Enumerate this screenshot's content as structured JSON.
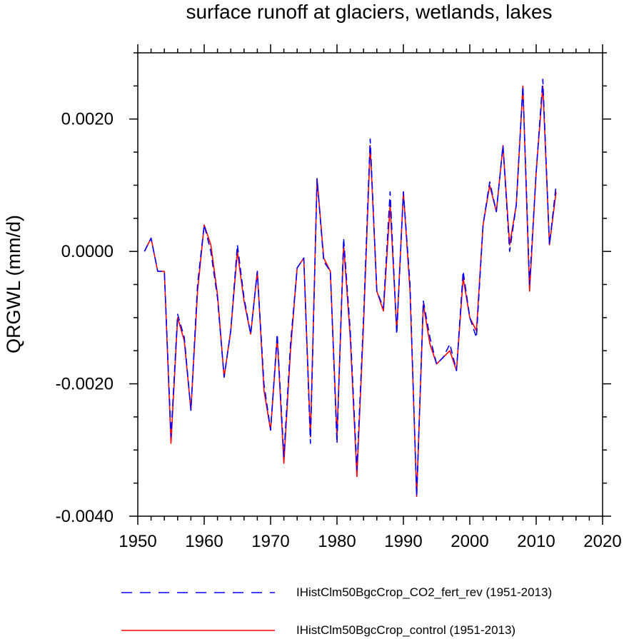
{
  "chart_data": {
    "type": "line",
    "title": "surface runoff at glaciers, wetlands, lakes",
    "xlabel": "",
    "ylabel": "QRGWL  (mm/d)",
    "xlim": [
      1950,
      2020
    ],
    "ylim": [
      -0.004,
      0.003
    ],
    "x_ticks": [
      1950,
      1960,
      1970,
      1980,
      1990,
      2000,
      2010,
      2020
    ],
    "x_tick_labels": [
      "1950",
      "1960",
      "1970",
      "1980",
      "1990",
      "2000",
      "2010",
      "2020"
    ],
    "y_ticks": [
      -0.004,
      -0.002,
      0.0,
      0.002
    ],
    "y_tick_labels": [
      "-0.0040",
      "-0.0020",
      "0.0000",
      "0.0020"
    ],
    "grid": false,
    "legend_position": "bottom",
    "x": [
      1951,
      1952,
      1953,
      1954,
      1955,
      1956,
      1957,
      1958,
      1959,
      1960,
      1961,
      1962,
      1963,
      1964,
      1965,
      1966,
      1967,
      1968,
      1969,
      1970,
      1971,
      1972,
      1973,
      1974,
      1975,
      1976,
      1977,
      1978,
      1979,
      1980,
      1981,
      1982,
      1983,
      1984,
      1985,
      1986,
      1987,
      1988,
      1989,
      1990,
      1991,
      1992,
      1993,
      1994,
      1995,
      1996,
      1997,
      1998,
      1999,
      2000,
      2001,
      2002,
      2003,
      2004,
      2005,
      2006,
      2007,
      2008,
      2009,
      2010,
      2011,
      2012,
      2013
    ],
    "series": [
      {
        "name": "IHistClm50BgcCrop_CO2_fert_rev (1951-2013)",
        "color": "#0000ff",
        "style": "dashed",
        "values": [
          0.0,
          0.0002,
          -0.0003,
          -0.0003,
          -0.0028,
          -0.00095,
          -0.0013,
          -0.0024,
          -0.0005,
          0.0004,
          0.0,
          -0.0007,
          -0.0019,
          -0.0012,
          0.0001,
          -0.0007,
          -0.00125,
          -0.0003,
          -0.002,
          -0.0027,
          -0.00125,
          -0.0031,
          -0.0014,
          -0.00025,
          -0.0001,
          -0.0029,
          0.0011,
          -0.00015,
          -0.0003,
          -0.0029,
          0.0002,
          -0.0012,
          -0.0033,
          -0.001,
          0.0017,
          -0.0006,
          -0.00085,
          0.0009,
          -0.00125,
          0.0009,
          -0.0005,
          -0.0037,
          -0.00075,
          -0.0013,
          -0.0017,
          -0.0016,
          -0.0014,
          -0.0018,
          -0.0003,
          -0.001,
          -0.0013,
          0.0004,
          0.00105,
          0.0006,
          0.0016,
          0.0,
          0.0007,
          0.0025,
          -0.0005,
          0.0012,
          0.0026,
          0.0001,
          0.001
        ]
      },
      {
        "name": "IHistClm50BgcCrop_control (1951-2013)",
        "color": "#ff0000",
        "style": "solid",
        "values": [
          0.0,
          0.0002,
          -0.0003,
          -0.0003,
          -0.0029,
          -0.001,
          -0.00135,
          -0.0024,
          -0.0006,
          0.0004,
          0.0001,
          -0.00065,
          -0.0019,
          -0.0012,
          0.0,
          -0.00075,
          -0.00125,
          -0.0003,
          -0.0021,
          -0.0027,
          -0.0013,
          -0.0032,
          -0.0015,
          -0.00025,
          -0.0001,
          -0.0028,
          0.0011,
          -0.0001,
          -0.0003,
          -0.0028,
          0.0001,
          -0.0013,
          -0.0034,
          -0.0011,
          0.0016,
          -0.0006,
          -0.0009,
          0.0007,
          -0.0012,
          0.0009,
          -0.0006,
          -0.0037,
          -0.0008,
          -0.0014,
          -0.0017,
          -0.0016,
          -0.0015,
          -0.0018,
          -0.0004,
          -0.001,
          -0.0012,
          0.0004,
          0.001,
          0.0006,
          0.0016,
          0.0001,
          0.0007,
          0.0025,
          -0.0006,
          0.0012,
          0.0025,
          0.0001,
          0.0009
        ]
      }
    ]
  }
}
